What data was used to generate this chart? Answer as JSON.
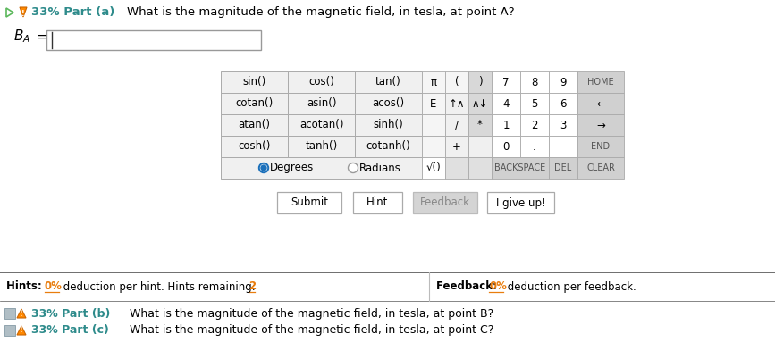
{
  "bg_color": "#ffffff",
  "teal_color": "#2e8b8b",
  "orange_color": "#e87d0e",
  "blue_color": "#1a6fba",
  "green_color": "#5cb85c",
  "gray_cell": "#f0f0f0",
  "gray_numpad": "#e0e0e0",
  "gray_dark": "#c8c8c8",
  "gray_btn": "#d4d4d4",
  "white": "#ffffff",
  "calc_rows": [
    [
      "sin()",
      "cos()",
      "tan()"
    ],
    [
      "cotan()",
      "asin()",
      "acos()"
    ],
    [
      "atan()",
      "acotan()",
      "sinh()"
    ],
    [
      "cosh()",
      "tanh()",
      "cotanh()"
    ]
  ],
  "numpad_row0": [
    "π",
    "(",
    ")",
    "7",
    "8",
    "9",
    "HOME"
  ],
  "numpad_row1": [
    "E",
    "↑∧",
    "∧↓",
    "4",
    "5",
    "6",
    "←"
  ],
  "numpad_row2": [
    "/",
    "*",
    "",
    "1",
    "2",
    "3",
    "→"
  ],
  "numpad_row3": [
    "",
    "+",
    "-",
    "0",
    ".",
    "",
    "END"
  ],
  "numpad_row4": [
    "√()",
    "",
    "BACKSPACE",
    "DEL",
    "CLEAR"
  ],
  "part_a": "33% Part (a)",
  "part_a_q": "What is the magnitude of the magnetic field, in tesla, at point A?",
  "part_b": "33% Part (b)",
  "part_b_q": "What is the magnitude of the magnetic field, in tesla, at point B?",
  "part_c": "33% Part (c)",
  "part_c_q": "What is the magnitude of the magnetic field, in tesla, at point C?"
}
